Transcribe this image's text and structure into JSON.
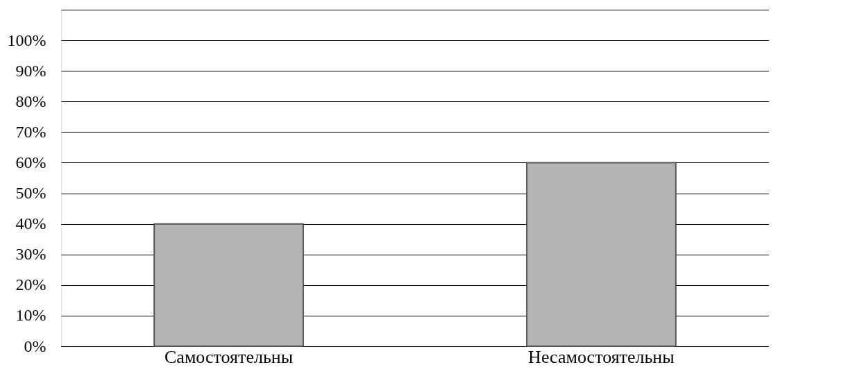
{
  "chart_data": {
    "type": "bar",
    "categories": [
      "Самостоятельны",
      "Несамостоятельны"
    ],
    "values": [
      40,
      60
    ],
    "color": "#b4b4b4",
    "ylim": [
      0,
      110
    ],
    "yticks": [
      {
        "value": 0,
        "label": "0%"
      },
      {
        "value": 10,
        "label": "10%"
      },
      {
        "value": 20,
        "label": "20%"
      },
      {
        "value": 30,
        "label": "30%"
      },
      {
        "value": 40,
        "label": "40%"
      },
      {
        "value": 50,
        "label": "50%"
      },
      {
        "value": 60,
        "label": "60%"
      },
      {
        "value": 70,
        "label": "70%"
      },
      {
        "value": 80,
        "label": "80%"
      },
      {
        "value": 90,
        "label": "90%"
      },
      {
        "value": 100,
        "label": "100%"
      }
    ],
    "grid": "y"
  }
}
